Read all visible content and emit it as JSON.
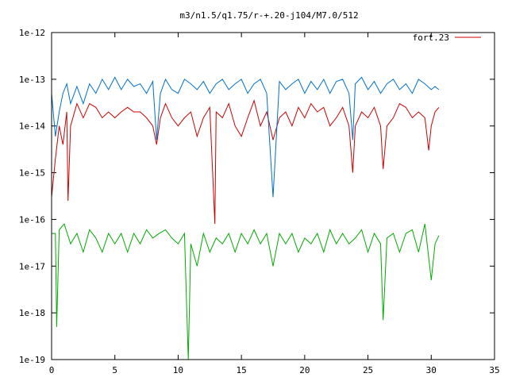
{
  "chart_data": {
    "type": "line",
    "title": "m3/n1.5/q1.75/r-+.20-j104/M7.0/512",
    "xlabel": "",
    "ylabel": "",
    "xlim": [
      0,
      35
    ],
    "ylim": [
      1e-19,
      1e-12
    ],
    "y_scale": "log",
    "grid": false,
    "legend_position": "top-right",
    "x_ticks": [
      0,
      5,
      10,
      15,
      20,
      25,
      30,
      35
    ],
    "x_tick_labels": [
      "0",
      "5",
      "10",
      "15",
      "20",
      "25",
      "30",
      "35"
    ],
    "y_ticks": [
      1e-19,
      1e-18,
      1e-17,
      1e-16,
      1e-15,
      1e-14,
      1e-13,
      1e-12
    ],
    "y_tick_labels": [
      "1e-19",
      "1e-18",
      "1e-17",
      "1e-16",
      "1e-15",
      "1e-14",
      "1e-13",
      "1e-12"
    ],
    "series": [
      {
        "name": "fort.23",
        "color": "#cc0000",
        "x": [
          0,
          0.3,
          0.6,
          0.9,
          1.2,
          1.3,
          1.5,
          2.0,
          2.5,
          3.0,
          3.5,
          4.0,
          4.5,
          5.0,
          5.5,
          6.0,
          6.5,
          7.0,
          7.5,
          8.0,
          8.3,
          8.6,
          9.0,
          9.5,
          10.0,
          10.5,
          11.0,
          11.5,
          12.0,
          12.5,
          12.9,
          13.0,
          13.5,
          14.0,
          14.5,
          15.0,
          15.5,
          16.0,
          16.5,
          17.0,
          17.5,
          18.0,
          18.5,
          19.0,
          19.5,
          20.0,
          20.5,
          21.0,
          21.5,
          22.0,
          22.5,
          23.0,
          23.5,
          23.8,
          24.0,
          24.5,
          25.0,
          25.5,
          26.0,
          26.2,
          26.5,
          27.0,
          27.5,
          28.0,
          28.5,
          29.0,
          29.5,
          29.8,
          30.0,
          30.3,
          30.6
        ],
        "y": [
          3e-16,
          2e-15,
          1e-14,
          4e-15,
          2e-14,
          2.5e-16,
          1e-14,
          3e-14,
          1.5e-14,
          3e-14,
          2.5e-14,
          1.5e-14,
          2e-14,
          1.5e-14,
          2e-14,
          2.5e-14,
          2e-14,
          2e-14,
          1.5e-14,
          1e-14,
          4e-15,
          1.5e-14,
          3e-14,
          1.5e-14,
          1e-14,
          1.5e-14,
          2e-14,
          6e-15,
          1.5e-14,
          2.5e-14,
          8e-17,
          2e-14,
          1.5e-14,
          3e-14,
          1e-14,
          6e-15,
          1.5e-14,
          3.5e-14,
          1e-14,
          2e-14,
          5e-15,
          1.5e-14,
          2e-14,
          1e-14,
          2.5e-14,
          1.5e-14,
          3e-14,
          2e-14,
          2.5e-14,
          1e-14,
          1.5e-14,
          2.5e-14,
          1e-14,
          1e-15,
          1e-14,
          2e-14,
          1.5e-14,
          2.5e-14,
          1e-14,
          1.2e-15,
          1e-14,
          1.5e-14,
          3e-14,
          2.5e-14,
          1.5e-14,
          2e-14,
          1.5e-14,
          3e-15,
          1e-14,
          2e-14,
          2.5e-14
        ]
      },
      {
        "name": "",
        "color": "#0070cc",
        "x": [
          0,
          0.3,
          0.6,
          0.9,
          1.2,
          1.5,
          2.0,
          2.5,
          3.0,
          3.5,
          4.0,
          4.5,
          5.0,
          5.5,
          6.0,
          6.5,
          7.0,
          7.5,
          8.0,
          8.3,
          8.6,
          9.0,
          9.5,
          10.0,
          10.5,
          11.0,
          11.5,
          12.0,
          12.5,
          13.0,
          13.5,
          14.0,
          14.5,
          15.0,
          15.5,
          16.0,
          16.5,
          17.0,
          17.5,
          18.0,
          18.5,
          19.0,
          19.5,
          20.0,
          20.5,
          21.0,
          21.5,
          22.0,
          22.5,
          23.0,
          23.5,
          23.8,
          24.0,
          24.5,
          25.0,
          25.5,
          26.0,
          26.5,
          27.0,
          27.5,
          28.0,
          28.5,
          29.0,
          29.5,
          30.0,
          30.3,
          30.6
        ],
        "y": [
          5e-14,
          6e-15,
          2e-14,
          5e-14,
          8e-14,
          3e-14,
          7e-14,
          3e-14,
          8e-14,
          5e-14,
          1e-13,
          6e-14,
          1.1e-13,
          6e-14,
          1e-13,
          7e-14,
          8e-14,
          5e-14,
          9e-14,
          5e-15,
          5e-14,
          1e-13,
          6e-14,
          5e-14,
          1e-13,
          8e-14,
          6e-14,
          9e-14,
          5e-14,
          8e-14,
          1e-13,
          6e-14,
          8e-14,
          1e-13,
          5e-14,
          8e-14,
          1e-13,
          5e-14,
          3e-16,
          9e-14,
          6e-14,
          8e-14,
          1e-13,
          5e-14,
          9e-14,
          6e-14,
          1e-13,
          5e-14,
          9e-14,
          1e-13,
          5e-14,
          5e-15,
          8e-14,
          1.1e-13,
          6e-14,
          9e-14,
          5e-14,
          8e-14,
          1e-13,
          6e-14,
          8e-14,
          5e-14,
          1e-13,
          8e-14,
          6e-14,
          7e-14,
          6e-14
        ]
      },
      {
        "name": "",
        "color": "#00aa00",
        "x": [
          0,
          0.3,
          0.4,
          0.6,
          1.0,
          1.5,
          2.0,
          2.5,
          3.0,
          3.5,
          4.0,
          4.5,
          5.0,
          5.5,
          6.0,
          6.5,
          7.0,
          7.5,
          8.0,
          8.5,
          9.0,
          9.5,
          10.0,
          10.5,
          10.8,
          11.0,
          11.5,
          12.0,
          12.5,
          13.0,
          13.5,
          14.0,
          14.5,
          15.0,
          15.5,
          16.0,
          16.5,
          17.0,
          17.5,
          18.0,
          18.5,
          19.0,
          19.5,
          20.0,
          20.5,
          21.0,
          21.5,
          22.0,
          22.5,
          23.0,
          23.5,
          24.0,
          24.5,
          25.0,
          25.5,
          26.0,
          26.2,
          26.5,
          27.0,
          27.5,
          28.0,
          28.5,
          29.0,
          29.5,
          30.0,
          30.3,
          30.6
        ],
        "y": [
          5e-17,
          5e-17,
          5e-19,
          6e-17,
          8e-17,
          3e-17,
          5e-17,
          2e-17,
          6e-17,
          4e-17,
          2e-17,
          5e-17,
          3e-17,
          5e-17,
          2e-17,
          5e-17,
          3e-17,
          6e-17,
          4e-17,
          5e-17,
          6e-17,
          4e-17,
          3e-17,
          5e-17,
          1e-19,
          3e-17,
          1e-17,
          5e-17,
          2e-17,
          4e-17,
          3e-17,
          5e-17,
          2e-17,
          5e-17,
          3e-17,
          6e-17,
          3e-17,
          5e-17,
          1e-17,
          5e-17,
          3e-17,
          5e-17,
          2e-17,
          4e-17,
          3e-17,
          5e-17,
          2e-17,
          6e-17,
          3e-17,
          5e-17,
          3e-17,
          4e-17,
          6e-17,
          2e-17,
          5e-17,
          3e-17,
          7e-19,
          4e-17,
          5e-17,
          2e-17,
          5e-17,
          6e-17,
          2e-17,
          8e-17,
          5e-18,
          3e-17,
          4.5e-17
        ]
      }
    ]
  }
}
